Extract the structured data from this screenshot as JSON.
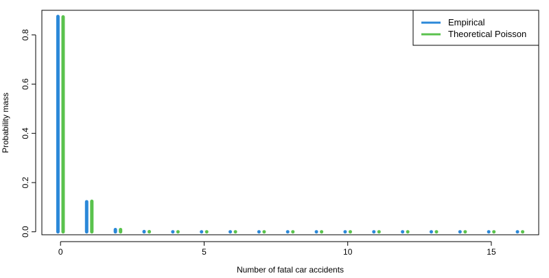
{
  "chart_data": {
    "type": "bar",
    "xlabel": "Number of fatal car accidents",
    "ylabel": "Probability mass",
    "xlim": [
      -0.65,
      16.65
    ],
    "ylim": [
      -0.012,
      0.9
    ],
    "x_ticks": [
      0,
      5,
      10,
      15
    ],
    "x_tick_labels": [
      "0",
      "5",
      "10",
      "15"
    ],
    "y_ticks": [
      0.0,
      0.2,
      0.4,
      0.6,
      0.8
    ],
    "y_tick_labels": [
      "0.0",
      "0.2",
      "0.4",
      "0.6",
      "0.8"
    ],
    "grid": false,
    "legend_position": "top-right",
    "x": [
      0,
      1,
      2,
      3,
      4,
      5,
      6,
      7,
      8,
      9,
      10,
      11,
      12,
      13,
      14,
      15,
      16
    ],
    "series": [
      {
        "name": "Empirical",
        "color": "#2b88d8",
        "values": [
          0.875,
          0.122,
          0.009,
          0.001,
          0,
          0,
          0,
          0,
          0,
          0,
          0,
          0,
          0,
          0,
          0,
          0,
          0
        ]
      },
      {
        "name": "Theoretical Poisson",
        "color": "#5ac24d",
        "values": [
          0.873,
          0.124,
          0.009,
          0.0004,
          0,
          0,
          0,
          0,
          0,
          0,
          0,
          0,
          0,
          0,
          0,
          0,
          0
        ]
      }
    ]
  }
}
